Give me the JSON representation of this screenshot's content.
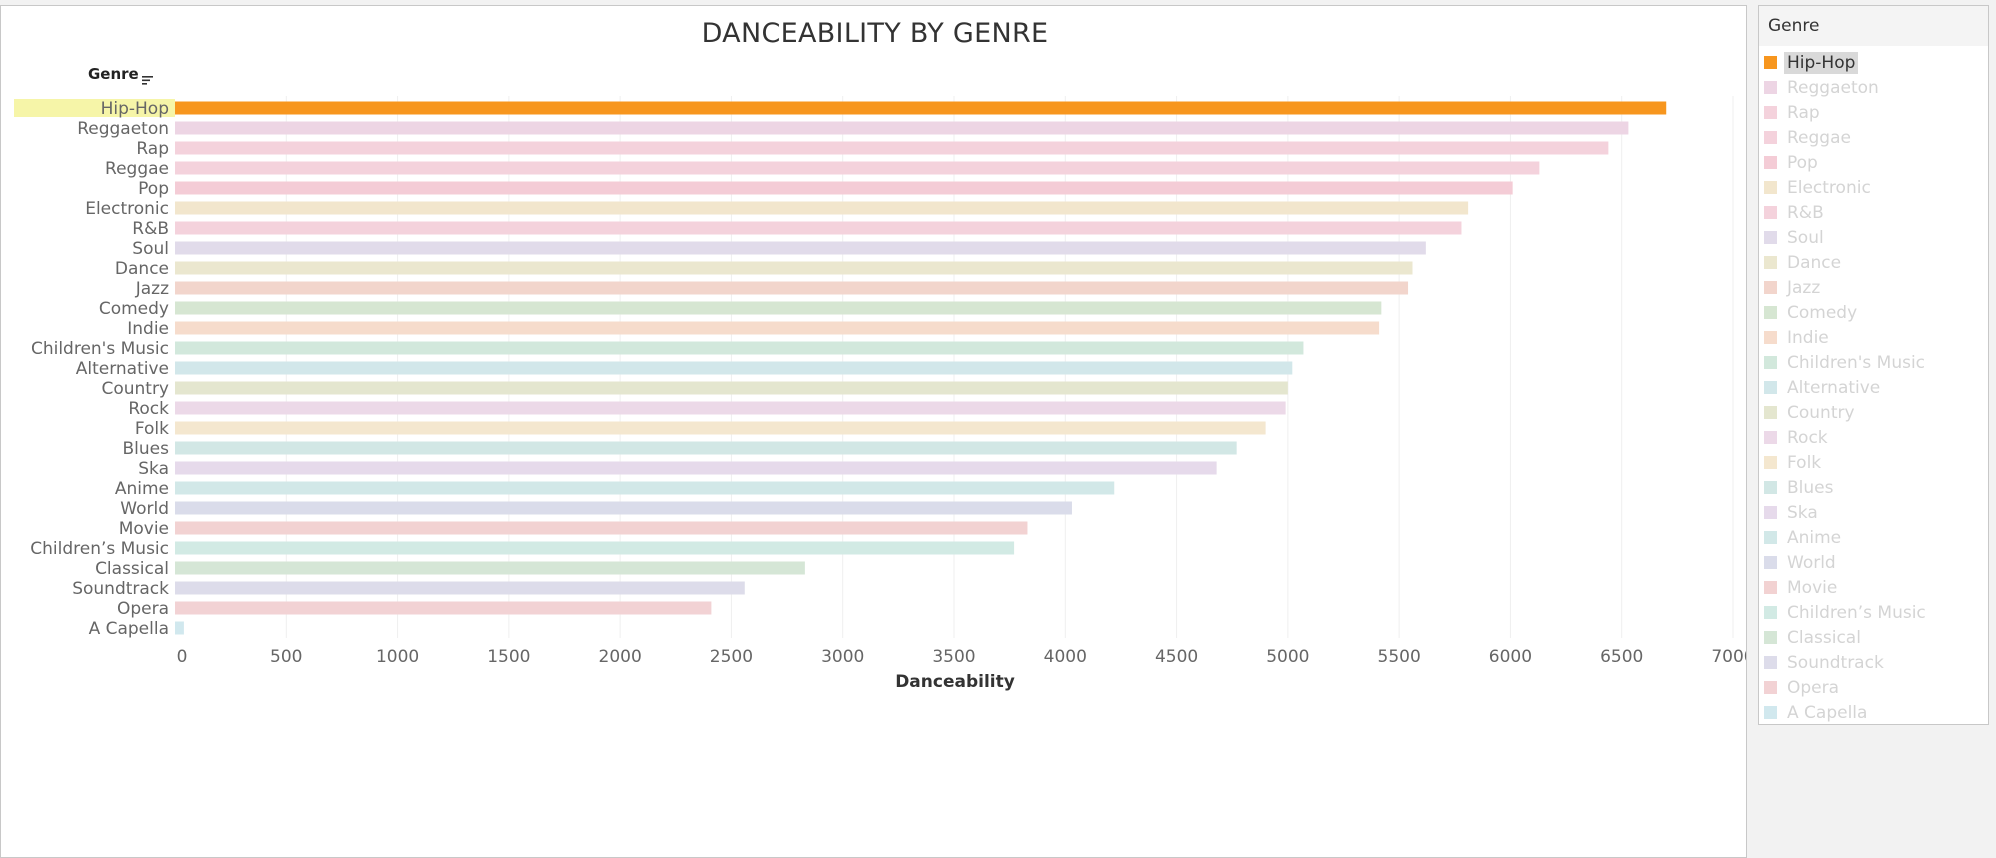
{
  "chart_data": {
    "type": "bar",
    "orientation": "horizontal",
    "title": "DANCEABILITY BY GENRE",
    "category_header": "Genre",
    "xlabel": "Danceability",
    "xlim": [
      0,
      7000
    ],
    "xticks": [
      "0",
      "500",
      "1000",
      "1500",
      "2000",
      "2500",
      "3000",
      "3500",
      "4000",
      "4500",
      "5000",
      "5500",
      "6000",
      "6500",
      "7000"
    ],
    "grid": true,
    "highlighted": "Hip-Hop",
    "categories": [
      "Hip-Hop",
      "Reggaeton",
      "Rap",
      "Reggae",
      "Pop",
      "Electronic",
      "R&B",
      "Soul",
      "Dance",
      "Jazz",
      "Comedy",
      "Indie",
      "Children's Music",
      "Alternative",
      "Country",
      "Rock",
      "Folk",
      "Blues",
      "Ska",
      "Anime",
      "World",
      "Movie",
      "Children’s Music",
      "Classical",
      "Soundtrack",
      "Opera",
      "A Capella"
    ],
    "values": [
      6700,
      6530,
      6440,
      6130,
      6010,
      5810,
      5780,
      5620,
      5560,
      5540,
      5420,
      5410,
      5070,
      5020,
      5000,
      4990,
      4900,
      4770,
      4680,
      4220,
      4030,
      3830,
      3770,
      2830,
      2560,
      2410,
      40
    ],
    "colors": [
      "#f7961e",
      "#edd5e4",
      "#f4d2dc",
      "#f4d2dc",
      "#f4ccd6",
      "#f2e6cd",
      "#f4d2dc",
      "#e1dbea",
      "#ebe7cf",
      "#f2d5cc",
      "#d6e6d2",
      "#f6dccc",
      "#d2e8dc",
      "#d2e7ea",
      "#e4e6cf",
      "#ecd9e8",
      "#f4e7cf",
      "#d2e7e5",
      "#e6daeb",
      "#d2e8e8",
      "#dadcea",
      "#f2d2d2",
      "#d2eae4",
      "#d5e6d6",
      "#dddcea",
      "#f2d2d4",
      "#d1e8ee"
    ]
  },
  "legend": {
    "title": "Genre"
  }
}
